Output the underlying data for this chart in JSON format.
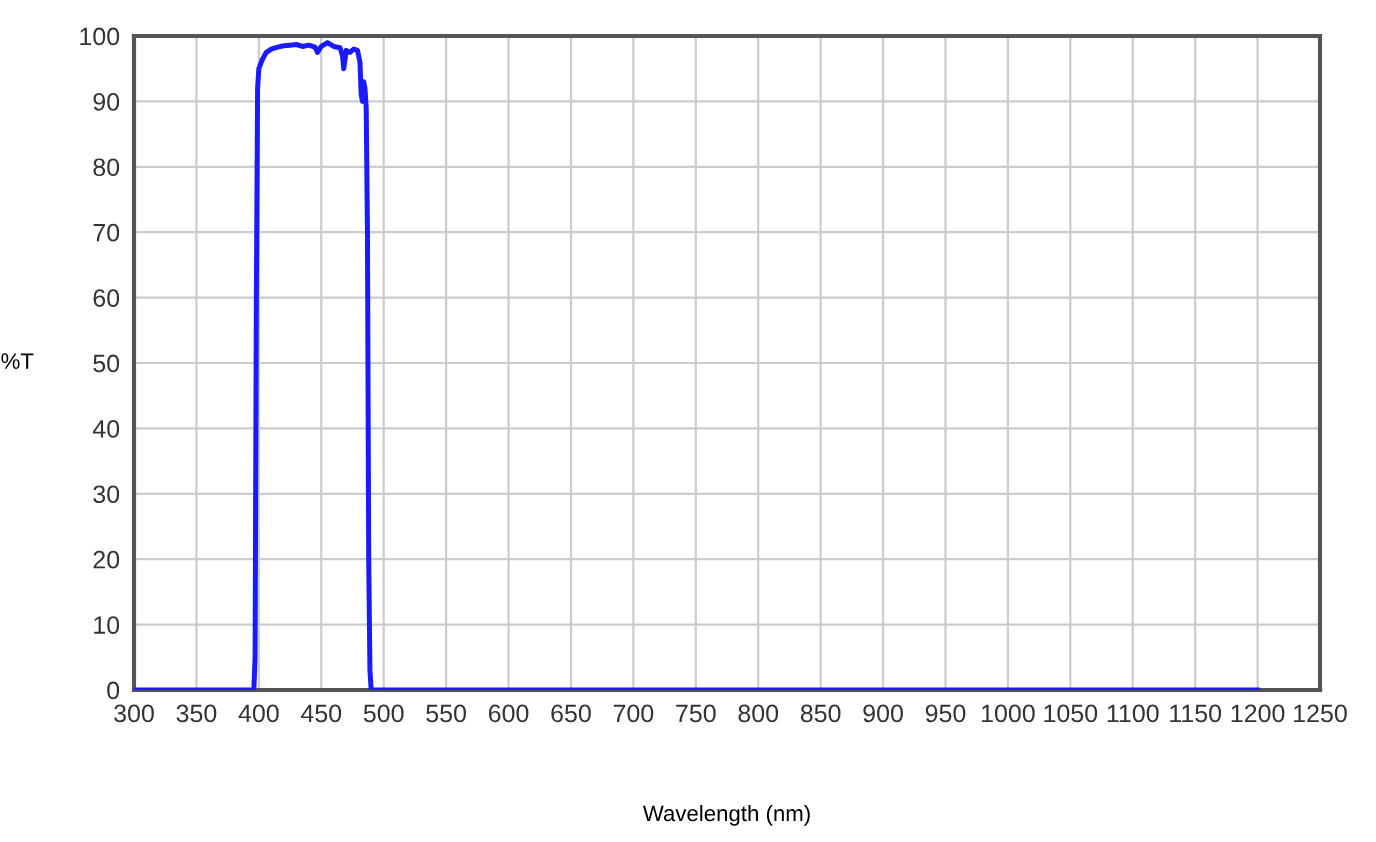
{
  "chart_data": {
    "type": "line",
    "xlabel": "Wavelength (nm)",
    "ylabel": "%T",
    "series": [
      {
        "color": "#1a1aff",
        "x": [
          300,
          396,
          397,
          398,
          399,
          400,
          403,
          406,
          410,
          415,
          420,
          425,
          430,
          435,
          440,
          445,
          447,
          450,
          455,
          460,
          465,
          467,
          468,
          470,
          473,
          476,
          479,
          481,
          482,
          483,
          484,
          485,
          486,
          487,
          488,
          489,
          490,
          491,
          500,
          600,
          800,
          1000,
          1200
        ],
        "values": [
          0,
          0,
          5,
          60,
          92,
          95,
          96.5,
          97.5,
          98,
          98.3,
          98.5,
          98.6,
          98.7,
          98.4,
          98.6,
          98.3,
          97.5,
          98.4,
          99,
          98.4,
          98.2,
          97,
          95,
          97.8,
          97.5,
          98,
          97.8,
          96,
          91,
          90,
          93,
          92,
          89,
          70,
          20,
          3,
          0,
          0,
          0,
          0,
          0,
          0,
          0
        ]
      }
    ],
    "xlim": [
      300,
      1250
    ],
    "xticks": [
      300,
      350,
      400,
      450,
      500,
      550,
      600,
      650,
      700,
      750,
      800,
      850,
      900,
      950,
      1000,
      1050,
      1100,
      1150,
      1200,
      1250
    ],
    "ylim": [
      0,
      100
    ],
    "yticks": [
      0,
      10,
      20,
      30,
      40,
      50,
      60,
      70,
      80,
      90,
      100
    ],
    "grid": true,
    "marker": "none",
    "line_style": "solid"
  }
}
